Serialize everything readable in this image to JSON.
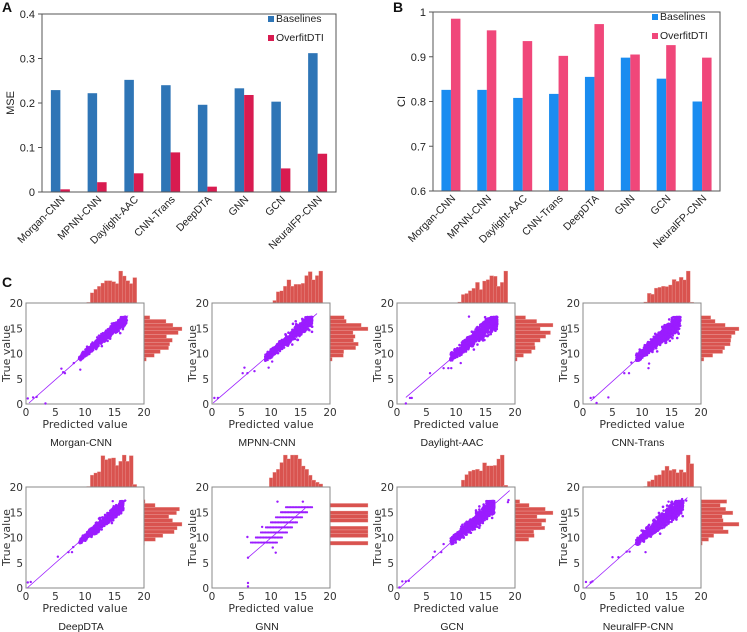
{
  "panels": {
    "a": "A",
    "b": "B",
    "c": "C"
  },
  "chart_data": [
    {
      "id": "A",
      "type": "bar",
      "title": "",
      "xlabel": "",
      "ylabel": "MSE",
      "ylim": [
        0,
        0.4
      ],
      "yticks": [
        "0",
        "0.1",
        "0.2",
        "0.3",
        "0.4"
      ],
      "ytick_values": [
        0,
        0.1,
        0.2,
        0.3,
        0.4
      ],
      "legend": "top-right",
      "grid": false,
      "categories": [
        "Morgan-CNN",
        "MPNN-CNN",
        "Daylight-AAC",
        "CNN-Trans",
        "DeepDTA",
        "GNN",
        "GCN",
        "NeuralFP-CNN"
      ],
      "series": [
        {
          "name": "Baselines",
          "color": "#2e75b6",
          "values": [
            0.229,
            0.222,
            0.252,
            0.24,
            0.196,
            0.233,
            0.203,
            0.312
          ]
        },
        {
          "name": "OverfitDTI",
          "color": "#d81b50",
          "values": [
            0.006,
            0.022,
            0.042,
            0.089,
            0.012,
            0.218,
            0.053,
            0.086
          ]
        }
      ]
    },
    {
      "id": "B",
      "type": "bar",
      "title": "",
      "xlabel": "",
      "ylabel": "CI",
      "ylim": [
        0.6,
        1.0
      ],
      "yticks": [
        "0.6",
        "0.7",
        "0.8",
        "0.9",
        "1"
      ],
      "ytick_values": [
        0.6,
        0.7,
        0.8,
        0.9,
        1.0
      ],
      "legend": "top-right",
      "grid": false,
      "categories": [
        "Morgan-CNN",
        "MPNN-CNN",
        "Daylight-AAC",
        "CNN-Trans",
        "DeepDTA",
        "GNN",
        "GCN",
        "NeuralFP-CNN"
      ],
      "series": [
        {
          "name": "Baselines",
          "color": "#1a8cf0",
          "values": [
            0.826,
            0.826,
            0.808,
            0.817,
            0.855,
            0.898,
            0.851,
            0.8
          ]
        },
        {
          "name": "OverfitDTI",
          "color": "#f0477a",
          "values": [
            0.985,
            0.959,
            0.935,
            0.902,
            0.973,
            0.905,
            0.926,
            0.898
          ]
        }
      ]
    },
    {
      "id": "C",
      "type": "scatter",
      "xlabel": "Predicted value",
      "ylabel": "True value",
      "xlim": [
        0,
        20
      ],
      "ylim": [
        0,
        20
      ],
      "xticks": [
        "0",
        "5",
        "10",
        "15",
        "20"
      ],
      "yticks": [
        "0",
        "5",
        "10",
        "15",
        "20"
      ],
      "point_color": "#9b1cff",
      "hist_color": "#d9534f",
      "models": [
        {
          "name": "Morgan-CNN",
          "cluster": {
            "x_range": [
              9,
              17
            ],
            "spread": 0.6
          },
          "outliers": [
            [
              0.3,
              1.1
            ],
            [
              1.2,
              1.3
            ],
            [
              1.8,
              1.4
            ],
            [
              3.3,
              0.1
            ],
            [
              6.3,
              6.3
            ],
            [
              6.6,
              6.1
            ],
            [
              6.0,
              7.0
            ],
            [
              9.2,
              6.8
            ],
            [
              8.1,
              8.1
            ],
            [
              17.1,
              16.6
            ],
            [
              16.8,
              17.3
            ]
          ],
          "fit_line": [
            [
              0.5,
              0.2
            ],
            [
              17.3,
              17.5
            ]
          ]
        },
        {
          "name": "MPNN-CNN",
          "cluster": {
            "x_range": [
              9,
              17
            ],
            "spread": 0.75
          },
          "outliers": [
            [
              0.4,
              1.2
            ],
            [
              1.0,
              1.2
            ],
            [
              5.2,
              6.1
            ],
            [
              5.5,
              7.2
            ],
            [
              6.0,
              6.1
            ],
            [
              7.2,
              6.5
            ],
            [
              9.6,
              7.2
            ],
            [
              10.2,
              8.4
            ],
            [
              16.7,
              16.6
            ]
          ],
          "fit_line": [
            [
              0.2,
              0.2
            ],
            [
              17.8,
              17.9
            ]
          ]
        },
        {
          "name": "Daylight-AAC",
          "cluster": {
            "x_range": [
              9,
              17
            ],
            "spread": 0.95
          },
          "outliers": [
            [
              1.5,
              0.1
            ],
            [
              2.2,
              1.2
            ],
            [
              2.5,
              1.2
            ],
            [
              5.6,
              6.1
            ],
            [
              7.9,
              7.1
            ],
            [
              8.7,
              7.1
            ],
            [
              9.2,
              7.1
            ],
            [
              10.8,
              8.1
            ],
            [
              12.2,
              17.3
            ],
            [
              16.5,
              16.4
            ],
            [
              16.9,
              17.3
            ]
          ],
          "fit_line": [
            [
              1.5,
              1.3
            ],
            [
              16.9,
              16.7
            ]
          ]
        },
        {
          "name": "CNN-Trans",
          "cluster": {
            "x_range": [
              9,
              16.5
            ],
            "spread": 1.0
          },
          "outliers": [
            [
              1.3,
              1.2
            ],
            [
              1.8,
              1.3
            ],
            [
              2.3,
              0.2
            ],
            [
              4.3,
              1.3
            ],
            [
              7.0,
              6.1
            ],
            [
              7.8,
              6.1
            ],
            [
              8.2,
              8.2
            ],
            [
              11.1,
              7.1
            ],
            [
              11.2,
              8.0
            ],
            [
              16.5,
              17.2
            ],
            [
              15.9,
              16.4
            ]
          ],
          "fit_line": [
            [
              1.3,
              0.6
            ],
            [
              16.5,
              16.6
            ]
          ]
        },
        {
          "name": "DeepDTA",
          "cluster": {
            "x_range": [
              9,
              16.5
            ],
            "spread": 0.6
          },
          "outliers": [
            [
              0.3,
              1.1
            ],
            [
              0.8,
              1.2
            ],
            [
              5.4,
              6.2
            ],
            [
              7.2,
              7.1
            ],
            [
              7.8,
              7.1
            ],
            [
              8.0,
              8.1
            ],
            [
              14.7,
              17.2
            ],
            [
              16.8,
              17.3
            ],
            [
              16.5,
              15.8
            ]
          ],
          "fit_line": [
            [
              0.2,
              0.0
            ],
            [
              17.0,
              17.4
            ]
          ]
        },
        {
          "name": "GNN",
          "cluster": {
            "x_range": [
              8.5,
              16
            ],
            "spread": 0,
            "discrete": true
          },
          "outliers": [
            [
              6.1,
              1.0
            ],
            [
              6.1,
              0.3
            ],
            [
              6.0,
              10.1
            ],
            [
              6.1,
              6.0
            ],
            [
              10.3,
              8.0
            ],
            [
              10.8,
              7.0
            ],
            [
              11.1,
              17.1
            ],
            [
              15.4,
              17.1
            ],
            [
              8.5,
              12.1
            ]
          ],
          "fit_line": [
            [
              6.1,
              6.0
            ],
            [
              15.8,
              15.8
            ]
          ]
        },
        {
          "name": "GCN",
          "cluster": {
            "x_range": [
              9,
              16.5
            ],
            "spread": 0.85
          },
          "outliers": [
            [
              0.9,
              1.3
            ],
            [
              1.5,
              1.3
            ],
            [
              2.0,
              1.4
            ],
            [
              0.4,
              0.1
            ],
            [
              6.1,
              6.1
            ],
            [
              6.4,
              7.2
            ],
            [
              7.5,
              7.1
            ],
            [
              7.9,
              8.7
            ],
            [
              16.2,
              16.4
            ],
            [
              18.8,
              17.0
            ],
            [
              18.9,
              17.4
            ]
          ],
          "fit_line": [
            [
              0.5,
              0.1
            ],
            [
              19.1,
              19.3
            ]
          ]
        },
        {
          "name": "NeuralFP-CNN",
          "cluster": {
            "x_range": [
              9,
              17
            ],
            "spread": 1.0
          },
          "outliers": [
            [
              0.5,
              1.2
            ],
            [
              1.3,
              1.1
            ],
            [
              1.6,
              1.3
            ],
            [
              5.0,
              6.1
            ],
            [
              6.0,
              6.1
            ],
            [
              7.4,
              7.2
            ],
            [
              7.9,
              7.2
            ],
            [
              10.6,
              7.1
            ],
            [
              14.5,
              17.1
            ],
            [
              17.5,
              17.3
            ],
            [
              16.8,
              17.6
            ]
          ],
          "fit_line": [
            [
              0.4,
              0.0
            ],
            [
              17.7,
              17.9
            ]
          ]
        }
      ]
    }
  ]
}
